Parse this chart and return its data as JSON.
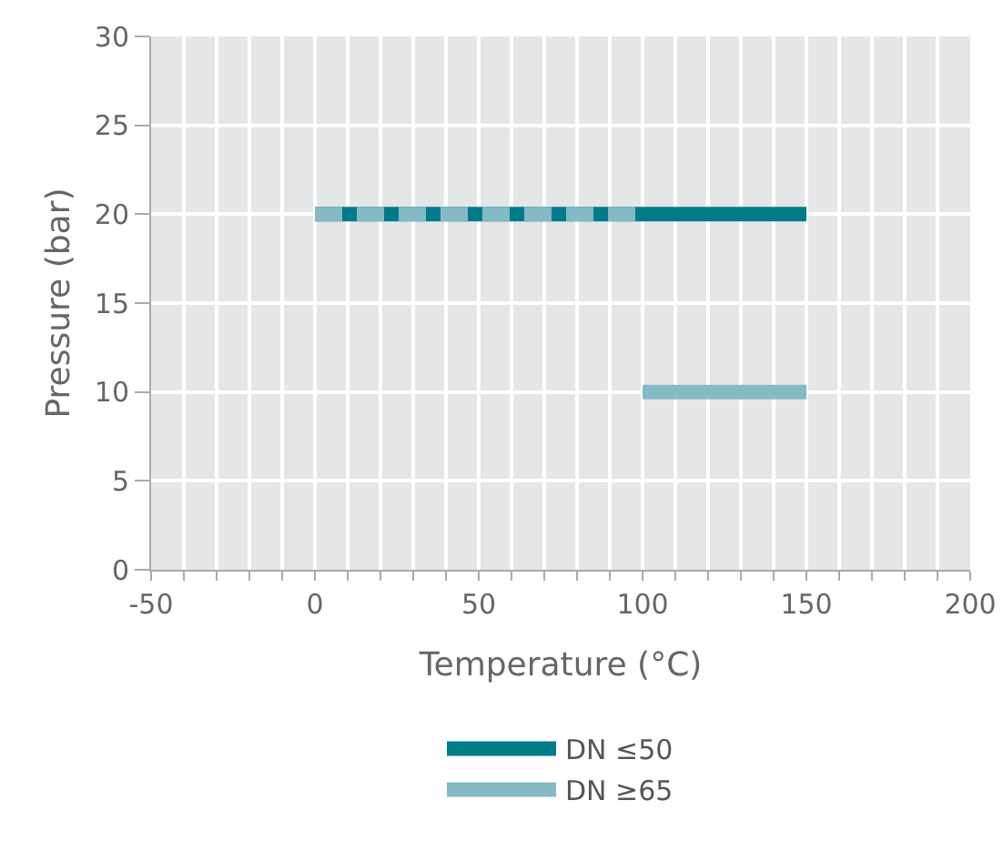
{
  "chart_data": {
    "type": "line",
    "xlabel": "Temperature (°C)",
    "ylabel": "Pressure (bar)",
    "series": [
      {
        "name": "DN ≤50",
        "color": "#007b8a",
        "x": [
          0,
          150
        ],
        "values": [
          20,
          20
        ]
      },
      {
        "color": "#84bac4",
        "x": [
          0,
          100
        ],
        "values": [
          20,
          20
        ],
        "line_style": "dashed"
      },
      {
        "name": "DN ≥65",
        "color": "#84bac4",
        "x": [
          100,
          150
        ],
        "values": [
          10,
          10
        ]
      }
    ],
    "xlim": [
      -50,
      200
    ],
    "xticks": [
      -50,
      {
        "value": -40,
        "label": null
      },
      {
        "value": -30,
        "label": null
      },
      {
        "value": -20,
        "label": null
      },
      {
        "value": -10,
        "label": null
      },
      0,
      {
        "value": 10,
        "label": null
      },
      {
        "value": 20,
        "label": null
      },
      {
        "value": 30,
        "label": null
      },
      {
        "value": 40,
        "label": null
      },
      50,
      {
        "value": 60,
        "label": null
      },
      {
        "value": 70,
        "label": null
      },
      {
        "value": 80,
        "label": null
      },
      {
        "value": 90,
        "label": null
      },
      100,
      {
        "value": 110,
        "label": null
      },
      {
        "value": 120,
        "label": null
      },
      {
        "value": 130,
        "label": null
      },
      {
        "value": 140,
        "label": null
      },
      150,
      {
        "value": 160,
        "label": null
      },
      {
        "value": 170,
        "label": null
      },
      {
        "value": 180,
        "label": null
      },
      {
        "value": 190,
        "label": null
      },
      200
    ],
    "ylim": [
      0,
      30
    ],
    "yticks": [
      0,
      5,
      10,
      15,
      20,
      25,
      30
    ],
    "grid": true,
    "legend": "bottom",
    "marker": "none"
  }
}
